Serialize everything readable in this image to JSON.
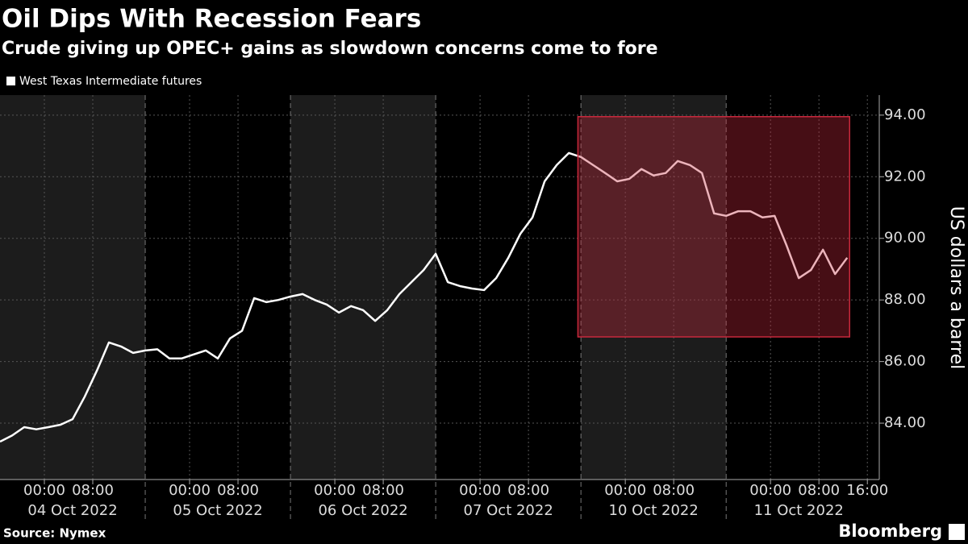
{
  "chart_data": {
    "type": "line",
    "title": "Oil Dips With Recession Fears",
    "subtitle": "Crude giving up OPEC+ gains as slowdown concerns come to fore",
    "y_axis_label": "US dollars a barrel",
    "source": "Source: Nymex",
    "brand": "Bloomberg",
    "x": [
      0,
      2,
      4,
      6,
      8,
      10,
      12,
      14,
      16,
      18,
      20,
      22,
      24,
      26,
      28,
      30,
      32,
      34,
      36,
      38,
      40,
      42,
      44,
      46,
      48,
      50,
      52,
      54,
      56,
      58,
      60,
      62,
      64,
      66,
      68,
      70,
      72,
      74,
      76,
      78,
      80,
      82,
      84,
      86,
      88,
      90,
      92,
      94,
      96,
      98,
      100,
      102,
      104,
      106,
      108,
      110,
      112,
      114,
      116,
      118,
      120,
      122,
      124,
      126,
      128,
      130,
      132,
      134,
      136,
      138,
      140
    ],
    "series": [
      {
        "name": "West Texas Intermediate futures",
        "color": "#ffffff",
        "values": [
          83.4,
          83.6,
          83.87,
          83.8,
          83.87,
          83.95,
          84.13,
          84.86,
          85.7,
          86.62,
          86.49,
          86.28,
          86.36,
          86.4,
          86.1,
          86.1,
          86.23,
          86.36,
          86.1,
          86.75,
          87.0,
          88.06,
          87.93,
          88.0,
          88.11,
          88.19,
          88.0,
          87.85,
          87.59,
          87.8,
          87.67,
          87.32,
          87.67,
          88.19,
          88.58,
          88.97,
          89.5,
          88.58,
          88.45,
          88.37,
          88.32,
          88.71,
          89.37,
          90.15,
          90.68,
          91.85,
          92.38,
          92.77,
          92.64,
          92.38,
          92.12,
          91.85,
          91.93,
          92.25,
          92.04,
          92.12,
          92.51,
          92.38,
          92.12,
          90.81,
          90.73,
          90.88,
          90.88,
          90.68,
          90.73,
          89.76,
          88.71,
          88.97,
          89.63,
          88.84,
          89.37
        ]
      }
    ],
    "xlim": [
      0,
      145.3
    ],
    "xticks": [
      {
        "value": 7.33,
        "label": "00:00"
      },
      {
        "value": 15.33,
        "label": "08:00"
      },
      {
        "value": 31.33,
        "label": "00:00"
      },
      {
        "value": 39.33,
        "label": "08:00"
      },
      {
        "value": 55.33,
        "label": "00:00"
      },
      {
        "value": 63.33,
        "label": "08:00"
      },
      {
        "value": 79.33,
        "label": "00:00"
      },
      {
        "value": 87.33,
        "label": "08:00"
      },
      {
        "value": 103.33,
        "label": "00:00"
      },
      {
        "value": 111.33,
        "label": "08:00"
      },
      {
        "value": 127.33,
        "label": "00:00"
      },
      {
        "value": 135.33,
        "label": "08:00"
      },
      {
        "value": 143.33,
        "label": "16:00"
      }
    ],
    "date_labels": [
      {
        "value": 12,
        "label": "04 Oct 2022"
      },
      {
        "value": 36,
        "label": "05 Oct 2022"
      },
      {
        "value": 60,
        "label": "06 Oct 2022"
      },
      {
        "value": 84,
        "label": "07 Oct 2022"
      },
      {
        "value": 108,
        "label": "10 Oct 2022"
      },
      {
        "value": 132,
        "label": "11 Oct 2022"
      }
    ],
    "ylim": [
      82.17,
      94.65
    ],
    "yticks": [
      {
        "value": 84,
        "label": "84.00"
      },
      {
        "value": 86,
        "label": "86.00"
      },
      {
        "value": 88,
        "label": "88.00"
      },
      {
        "value": 90,
        "label": "90.00"
      },
      {
        "value": 92,
        "label": "92.00"
      },
      {
        "value": 94,
        "label": "94.00"
      }
    ],
    "highlight": {
      "xlim": [
        95.5,
        140.4
      ],
      "ylim": [
        86.8,
        93.95
      ],
      "color": "#c8283c"
    },
    "grid": true
  }
}
